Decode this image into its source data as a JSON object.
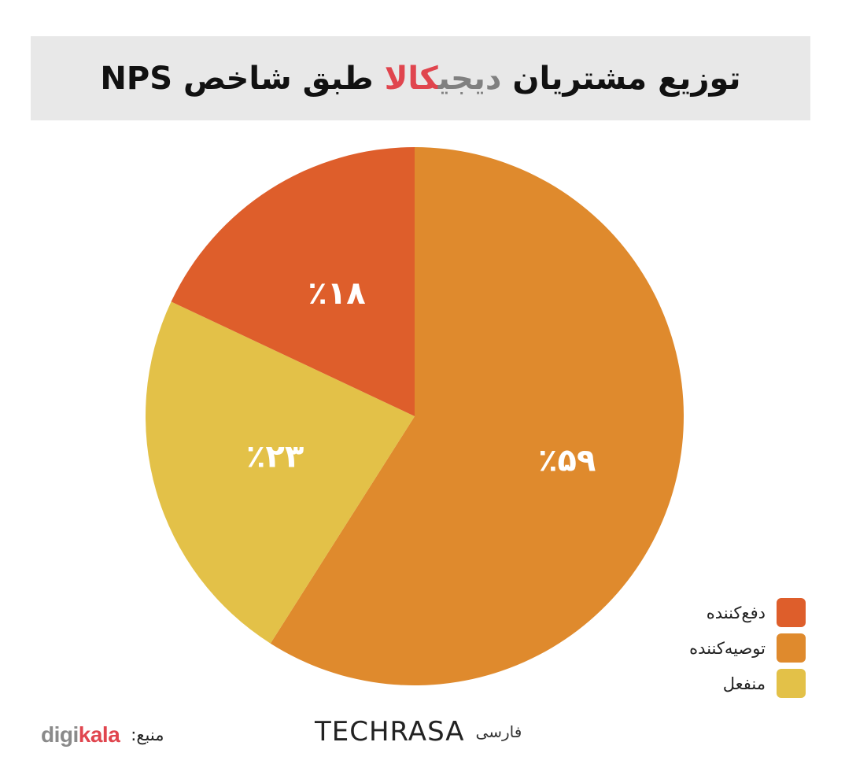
{
  "title": {
    "part1": "توزیع مشتریان ",
    "part2": "دیجی",
    "part3": "کالا",
    "part4": " طبق شاخص NPS"
  },
  "chart_data": {
    "type": "pie",
    "slices": [
      {
        "name": "توصیه‌کننده",
        "value": 59,
        "label": "٪۵۹",
        "color": "#df8a2d"
      },
      {
        "name": "منفعل",
        "value": 23,
        "label": "٪۲۳",
        "color": "#e3c148"
      },
      {
        "name": "دفع‌کننده",
        "value": 18,
        "label": "٪۱۸",
        "color": "#de5e2b"
      }
    ],
    "legend_position": "bottom-right"
  },
  "legend": [
    {
      "label": "دفع‌کننده",
      "color": "#de5e2b"
    },
    {
      "label": "توصیه‌کننده",
      "color": "#df8a2d"
    },
    {
      "label": "منفعل",
      "color": "#e3c148"
    }
  ],
  "source": {
    "label": "منبع:",
    "logo_part1": "digi",
    "logo_part2": "kala"
  },
  "brand": {
    "name": "TECHRASA",
    "sub": "فارسی"
  }
}
